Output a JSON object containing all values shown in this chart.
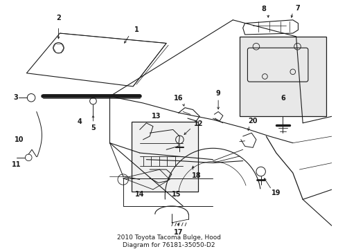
{
  "bg_color": "#ffffff",
  "line_color": "#1a1a1a",
  "title": "2010 Toyota Tacoma Bulge, Hood\nDiagram for 76181-35050-D2",
  "title_fontsize": 6.5,
  "label_fontsize": 7,
  "fig_w": 4.89,
  "fig_h": 3.6,
  "dpi": 100
}
